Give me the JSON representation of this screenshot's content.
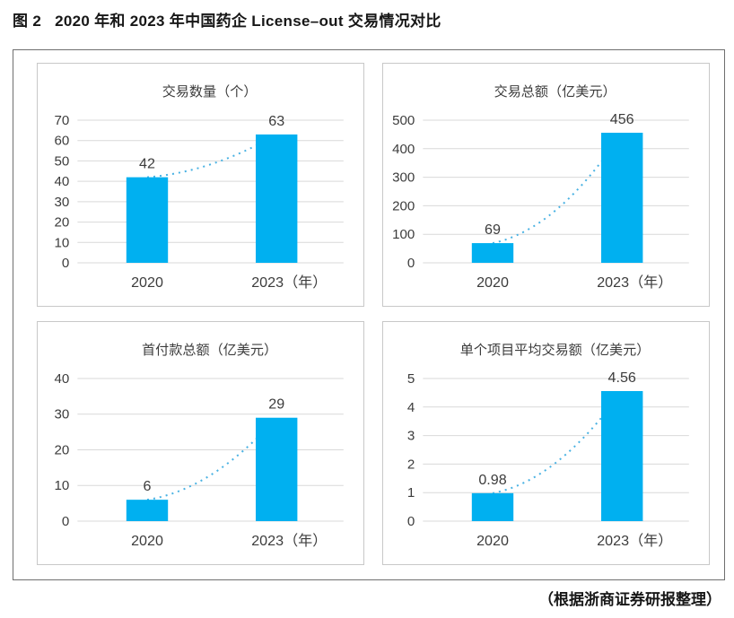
{
  "figure": {
    "label": "图 2",
    "title": "2020 年和 2023 年中国药企 License–out 交易情况对比",
    "source_note": "（根据浙商证券研报整理）"
  },
  "style": {
    "bar_color": "#00b0f0",
    "trend_line_color": "#4ab2e3",
    "grid_color": "#d9d9d9",
    "panel_border_color": "#c8c8c8",
    "outer_border_color": "#6f6f6f",
    "chart_text_color": "#3c3c3c",
    "title_text_color": "#171717"
  },
  "chart_data": [
    {
      "type": "bar",
      "title": "交易数量（个）",
      "categories": [
        "2020",
        "2023（年）"
      ],
      "values": [
        42,
        63
      ],
      "data_labels": [
        "42",
        "63"
      ],
      "yticks": [
        0,
        10,
        20,
        30,
        40,
        50,
        60,
        70
      ],
      "ylim": [
        0,
        70
      ],
      "grid": true,
      "legend": "none",
      "trend_line": "dotted"
    },
    {
      "type": "bar",
      "title": "交易总额（亿美元）",
      "categories": [
        "2020",
        "2023（年）"
      ],
      "values": [
        69,
        456
      ],
      "data_labels": [
        "69",
        "456"
      ],
      "yticks": [
        0,
        100,
        200,
        300,
        400,
        500
      ],
      "ylim": [
        0,
        500
      ],
      "grid": true,
      "legend": "none",
      "trend_line": "dotted"
    },
    {
      "type": "bar",
      "title": "首付款总额（亿美元）",
      "categories": [
        "2020",
        "2023（年）"
      ],
      "values": [
        6,
        29
      ],
      "data_labels": [
        "6",
        "29"
      ],
      "yticks": [
        0,
        10,
        20,
        30,
        40
      ],
      "ylim": [
        0,
        40
      ],
      "grid": true,
      "legend": "none",
      "trend_line": "dotted"
    },
    {
      "type": "bar",
      "title": "单个项目平均交易额（亿美元）",
      "categories": [
        "2020",
        "2023（年）"
      ],
      "values": [
        0.98,
        4.56
      ],
      "data_labels": [
        "0.98",
        "4.56"
      ],
      "yticks": [
        0,
        1,
        2,
        3,
        4,
        5
      ],
      "ylim": [
        0,
        5
      ],
      "grid": true,
      "legend": "none",
      "trend_line": "dotted"
    }
  ]
}
